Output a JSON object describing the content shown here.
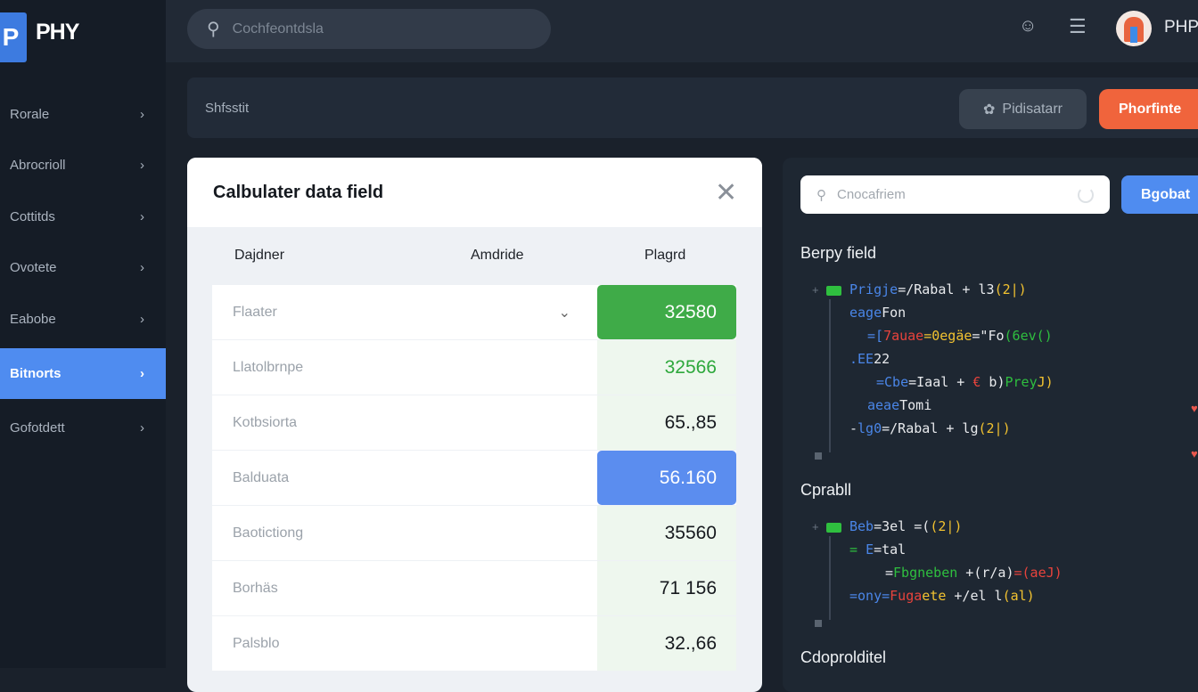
{
  "app": {
    "logo_letter": "P",
    "logo_text": "PHY"
  },
  "sidebar": {
    "items": [
      {
        "label": "Rorale"
      },
      {
        "label": "Abrocrioll"
      },
      {
        "label": "Cottitds"
      },
      {
        "label": "Ovotete"
      },
      {
        "label": "Eabobe"
      },
      {
        "label": "Bitnorts",
        "active": true
      },
      {
        "label": "Gofotdett"
      }
    ]
  },
  "topbar": {
    "search_placeholder": "Cochfeontdsla",
    "username": "PHP"
  },
  "toolbar": {
    "title": "Shfsstit",
    "secondary_button": "Pidisatarr",
    "primary_button": "Phorfinte"
  },
  "modal": {
    "title": "Calbulater data field",
    "columns": [
      "Dajdner",
      "Amdride",
      "Plagrd"
    ],
    "rows": [
      {
        "label": "Flaater",
        "value": "32580",
        "style": "green",
        "dropdown": true
      },
      {
        "label": "Llatolbrnpe",
        "value": "32566",
        "style": "green-text"
      },
      {
        "label": "Kotbsiorta",
        "value": "65.,85",
        "style": "plain"
      },
      {
        "label": "Balduata",
        "value": "56.160",
        "style": "blue"
      },
      {
        "label": "Baotictiong",
        "value": "35560",
        "style": "plain"
      },
      {
        "label": "Borhäs",
        "value": "71 156",
        "style": "plain"
      },
      {
        "label": "Palsblo",
        "value": "32.,66",
        "style": "plain"
      }
    ]
  },
  "panel": {
    "search_placeholder": "Cnocafriem",
    "button": "Bgobat",
    "sections": [
      {
        "title": "Berpy field",
        "lines": [
          [
            [
              "Prigje",
              "#4a86e8"
            ],
            [
              "=/Rabal + l3",
              "#e8eaed"
            ],
            [
              "(2|)",
              "#f2c230"
            ]
          ],
          [
            [
              "eage",
              "#4a86e8"
            ],
            [
              "Fon",
              "#e8eaed"
            ]
          ],
          [
            [
              "=[",
              "#4a86e8"
            ],
            [
              "7auae",
              "#e8433c"
            ],
            [
              "=0egäe",
              "#f2c230"
            ],
            [
              "=\"Fo",
              "#e8eaed"
            ],
            [
              "(6ev()",
              "#2fbf3f"
            ]
          ],
          [
            [
              ".EE",
              "#4a86e8"
            ],
            [
              "22",
              "#e8eaed"
            ]
          ],
          [
            [
              "=Cbe",
              "#4a86e8"
            ],
            [
              "=Iaal + ",
              "#e8eaed"
            ],
            [
              "€",
              "#e8433c"
            ],
            [
              " b)",
              "#e8eaed"
            ],
            [
              "Prey",
              "#2fbf3f"
            ],
            [
              "J)",
              "#f2c230"
            ]
          ],
          [
            [
              "aeae",
              "#4a86e8"
            ],
            [
              "Tomi",
              "#e8eaed"
            ]
          ],
          [
            [
              "-",
              "#e8eaed"
            ],
            [
              "lg0",
              "#4a86e8"
            ],
            [
              "=/Rabal + lg",
              "#e8eaed"
            ],
            [
              "(2|)",
              "#f2c230"
            ]
          ]
        ]
      },
      {
        "title": "Cprabll",
        "lines": [
          [
            [
              "Beb",
              "#4a86e8"
            ],
            [
              "=3el =(",
              "#e8eaed"
            ],
            [
              "(2|)",
              "#f2c230"
            ]
          ],
          [
            [
              "= ",
              "#2fbf3f"
            ],
            [
              "E",
              "#4a86e8"
            ],
            [
              "=tal",
              "#e8eaed"
            ]
          ],
          [
            [
              "=",
              "#e8eaed"
            ],
            [
              "Fbgneben",
              "#2fbf3f"
            ],
            [
              " +(r/a)",
              "#e8eaed"
            ],
            [
              "=(aeJ)",
              "#e8433c"
            ]
          ],
          [
            [
              "=ony=",
              "#4a86e8"
            ],
            [
              "Fuga",
              "#e8433c"
            ],
            [
              "ete",
              "#f2c230"
            ],
            [
              " +/el l",
              "#e8eaed"
            ],
            [
              "(al)",
              "#f2c230"
            ]
          ]
        ]
      },
      {
        "title": "Cdoprolditel",
        "lines": []
      }
    ]
  },
  "colors": {
    "accent_blue": "#4f8cf0",
    "accent_orange": "#f0643c",
    "success_green": "#3fab48"
  }
}
